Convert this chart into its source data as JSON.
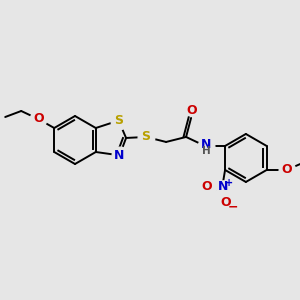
{
  "bg_color": "#e6e6e6",
  "bond_color": "#000000",
  "bond_lw": 1.4,
  "S_color": "#b8a000",
  "N_color": "#0000cc",
  "O_color": "#cc0000",
  "fig_w": 3.0,
  "fig_h": 3.0,
  "dpi": 100,
  "xlim": [
    0,
    300
  ],
  "ylim": [
    0,
    300
  ]
}
